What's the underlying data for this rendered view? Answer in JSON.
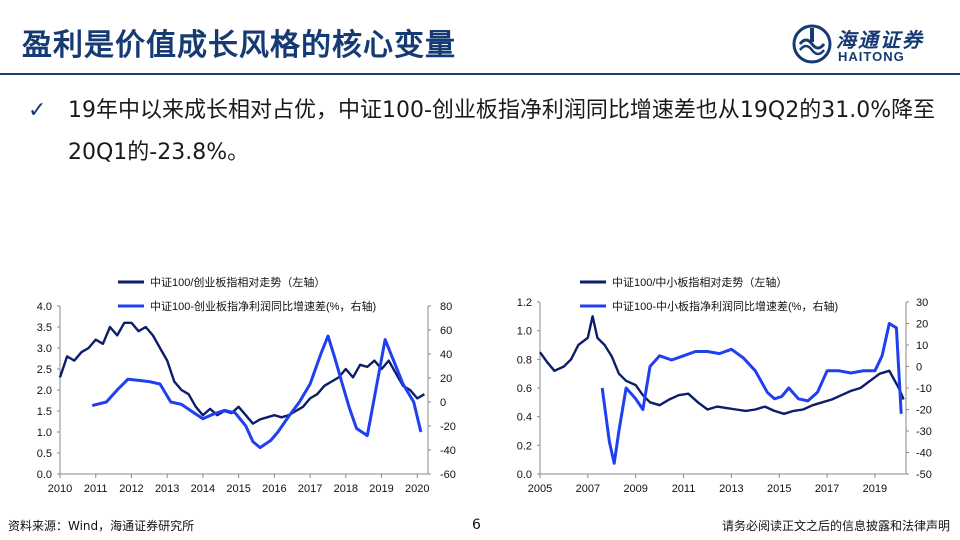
{
  "slide": {
    "title": "盈利是价值成长风格的核心变量",
    "bullet_text": "19年中以来成长相对占优，中证100-创业板指净利润同比增速差也从19Q2的31.0%降至20Q1的-23.8%。",
    "bullet_mark": "✓",
    "page_number": "6",
    "source": "资料来源：Wind，海通证券研究所",
    "disclaimer": "请务必阅读正文之后的信息披露和法律声明"
  },
  "logo": {
    "cn": "海通证券",
    "en": "HAITONG",
    "icon": "haitong-logo-icon"
  },
  "colors": {
    "primary": "#163a73",
    "line_dark": "#0b1d6b",
    "line_light": "#1f3ff0",
    "axis": "#888888"
  },
  "chart_data": [
    {
      "type": "line",
      "legend_position": "top",
      "x_ticks": [
        "2010",
        "2011",
        "2012",
        "2013",
        "2014",
        "2015",
        "2016",
        "2017",
        "2018",
        "2019",
        "2020"
      ],
      "xlim": [
        2010,
        2020.3
      ],
      "y_left": {
        "lim": [
          0,
          4.0
        ],
        "ticks": [
          "0.0",
          "0.5",
          "1.0",
          "1.5",
          "2.0",
          "2.5",
          "3.0",
          "3.5",
          "4.0"
        ]
      },
      "y_right": {
        "lim": [
          -60,
          80
        ],
        "ticks": [
          "-60",
          "-40",
          "-20",
          "0",
          "20",
          "40",
          "60",
          "80"
        ]
      },
      "series": [
        {
          "name": "中证100/创业板指相对走势（左轴）",
          "axis": "left",
          "color": "#0b1d6b",
          "x": [
            2010.0,
            2010.2,
            2010.4,
            2010.6,
            2010.8,
            2011.0,
            2011.2,
            2011.4,
            2011.6,
            2011.8,
            2012.0,
            2012.2,
            2012.4,
            2012.6,
            2012.8,
            2013.0,
            2013.2,
            2013.4,
            2013.6,
            2013.8,
            2014.0,
            2014.2,
            2014.4,
            2014.6,
            2014.8,
            2015.0,
            2015.2,
            2015.4,
            2015.6,
            2015.8,
            2016.0,
            2016.2,
            2016.4,
            2016.6,
            2016.8,
            2017.0,
            2017.2,
            2017.4,
            2017.6,
            2017.8,
            2018.0,
            2018.2,
            2018.4,
            2018.6,
            2018.8,
            2019.0,
            2019.2,
            2019.4,
            2019.6,
            2019.8,
            2020.0,
            2020.2
          ],
          "y": [
            2.3,
            2.8,
            2.7,
            2.9,
            3.0,
            3.2,
            3.1,
            3.5,
            3.3,
            3.6,
            3.6,
            3.4,
            3.5,
            3.3,
            3.0,
            2.7,
            2.2,
            2.0,
            1.9,
            1.6,
            1.4,
            1.55,
            1.4,
            1.5,
            1.45,
            1.6,
            1.4,
            1.2,
            1.3,
            1.35,
            1.4,
            1.35,
            1.4,
            1.5,
            1.6,
            1.8,
            1.9,
            2.1,
            2.2,
            2.3,
            2.5,
            2.3,
            2.6,
            2.55,
            2.7,
            2.5,
            2.7,
            2.4,
            2.1,
            2.0,
            1.8,
            1.9
          ]
        },
        {
          "name": "中证100-创业板指净利润同比增速差(%，右轴)",
          "axis": "right",
          "color": "#1f3ff0",
          "x": [
            2010.9,
            2011.3,
            2011.6,
            2011.9,
            2012.2,
            2012.5,
            2012.8,
            2013.1,
            2013.4,
            2013.7,
            2014.0,
            2014.3,
            2014.6,
            2014.9,
            2015.2,
            2015.4,
            2015.6,
            2015.9,
            2016.1,
            2016.4,
            2016.7,
            2017.0,
            2017.3,
            2017.5,
            2017.7,
            2017.9,
            2018.1,
            2018.3,
            2018.6,
            2018.9,
            2019.1,
            2019.4,
            2019.6,
            2019.9,
            2020.1
          ],
          "y": [
            -3,
            0,
            10,
            19,
            18,
            17,
            15,
            0,
            -2,
            -8,
            -14,
            -10,
            -7,
            -9,
            -20,
            -33,
            -38,
            -32,
            -25,
            -12,
            0,
            15,
            40,
            55,
            36,
            15,
            -5,
            -22,
            -28,
            20,
            52,
            30,
            15,
            0,
            -25
          ]
        }
      ]
    },
    {
      "type": "line",
      "legend_position": "top",
      "x_ticks": [
        "2005",
        "2007",
        "2009",
        "2011",
        "2013",
        "2015",
        "2017",
        "2019"
      ],
      "xlim": [
        2005,
        2020.3
      ],
      "y_left": {
        "lim": [
          0,
          1.2
        ],
        "ticks": [
          "0.0",
          "0.2",
          "0.4",
          "0.6",
          "0.8",
          "1.0",
          "1.2"
        ]
      },
      "y_right": {
        "lim": [
          -50,
          30
        ],
        "ticks": [
          "-50",
          "-40",
          "-30",
          "-20",
          "-10",
          "0",
          "10",
          "20",
          "30"
        ]
      },
      "series": [
        {
          "name": "中证100/中小板指相对走势（左轴）",
          "axis": "left",
          "color": "#0b1d6b",
          "x": [
            2005.0,
            2005.3,
            2005.6,
            2006.0,
            2006.3,
            2006.6,
            2007.0,
            2007.2,
            2007.4,
            2007.7,
            2008.0,
            2008.3,
            2008.6,
            2009.0,
            2009.3,
            2009.6,
            2010.0,
            2010.4,
            2010.8,
            2011.2,
            2011.6,
            2012.0,
            2012.4,
            2012.8,
            2013.2,
            2013.6,
            2014.0,
            2014.4,
            2014.8,
            2015.2,
            2015.6,
            2016.0,
            2016.4,
            2016.8,
            2017.2,
            2017.6,
            2018.0,
            2018.4,
            2018.8,
            2019.2,
            2019.6,
            2020.0,
            2020.2
          ],
          "y": [
            0.85,
            0.78,
            0.72,
            0.75,
            0.8,
            0.9,
            0.95,
            1.1,
            0.95,
            0.9,
            0.82,
            0.7,
            0.65,
            0.62,
            0.55,
            0.5,
            0.48,
            0.52,
            0.55,
            0.56,
            0.5,
            0.45,
            0.47,
            0.46,
            0.45,
            0.44,
            0.45,
            0.47,
            0.44,
            0.42,
            0.44,
            0.45,
            0.48,
            0.5,
            0.52,
            0.55,
            0.58,
            0.6,
            0.65,
            0.7,
            0.72,
            0.6,
            0.52
          ]
        },
        {
          "name": "中证100-中小板指净利润同比增速差(%，右轴)",
          "axis": "right",
          "color": "#1f3ff0",
          "x": [
            2007.6,
            2007.9,
            2008.1,
            2008.3,
            2008.6,
            2009.0,
            2009.3,
            2009.6,
            2010.0,
            2010.5,
            2011.0,
            2011.5,
            2012.0,
            2012.5,
            2013.0,
            2013.5,
            2014.0,
            2014.5,
            2014.8,
            2015.1,
            2015.4,
            2015.8,
            2016.2,
            2016.6,
            2017.0,
            2017.5,
            2018.0,
            2018.5,
            2019.0,
            2019.3,
            2019.6,
            2019.9,
            2020.1
          ],
          "y": [
            -10,
            -35,
            -45,
            -30,
            -10,
            -15,
            -20,
            0,
            5,
            3,
            5,
            7,
            7,
            6,
            8,
            4,
            -2,
            -12,
            -15,
            -14,
            -10,
            -15,
            -16,
            -12,
            -2,
            -2,
            -3,
            -2,
            -2,
            5,
            20,
            18,
            -22
          ]
        }
      ]
    }
  ]
}
